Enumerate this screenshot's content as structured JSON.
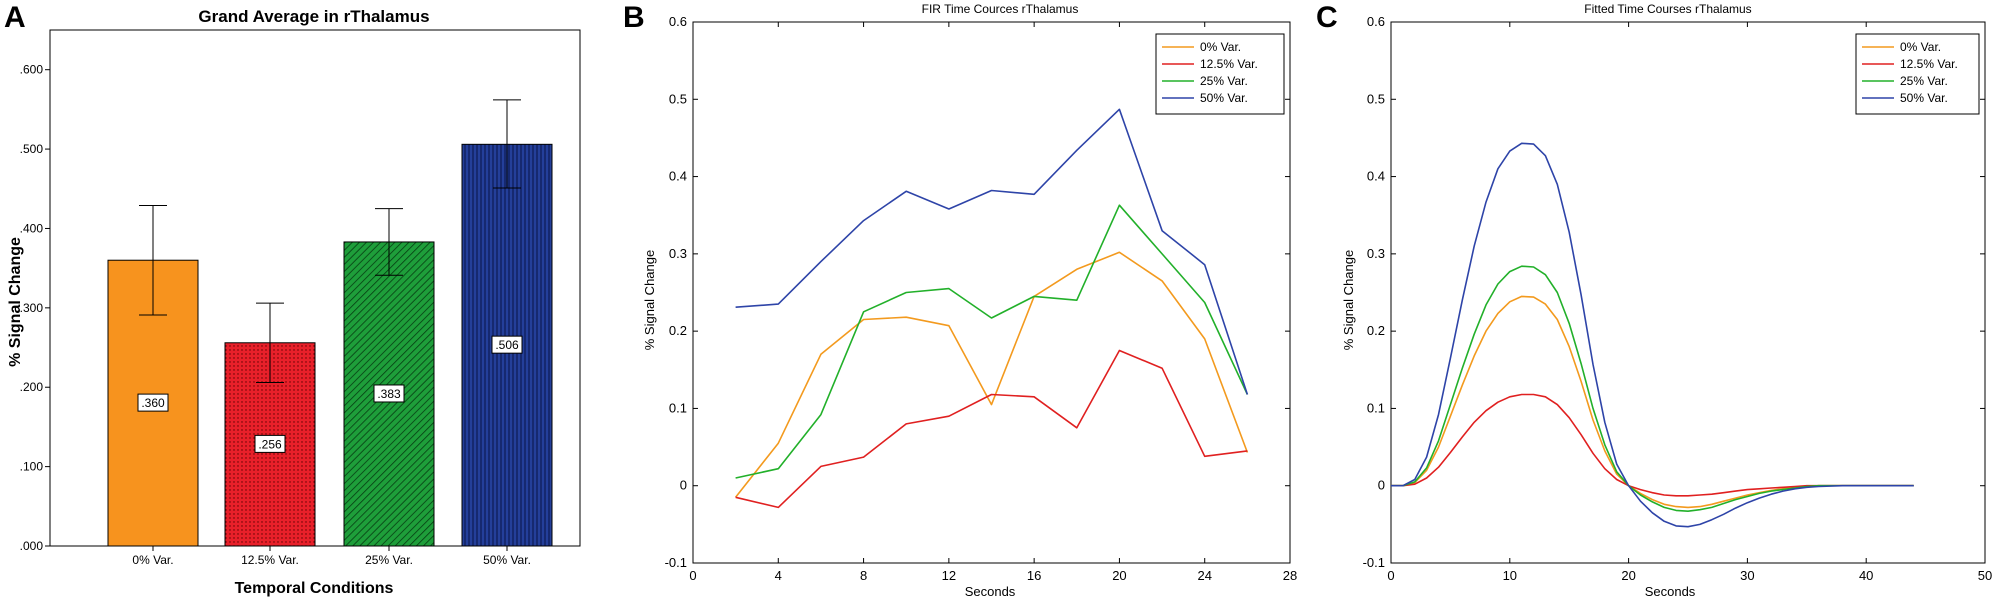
{
  "panel_letters": [
    "A",
    "B",
    "C"
  ],
  "colors": {
    "orange": "#F7931E",
    "red": "#E8202A",
    "green": "#1E9E3A",
    "blue": "#243F9A",
    "line_orange": "#F39A1E",
    "line_red": "#E02020",
    "line_green": "#22B02A",
    "line_blue": "#2E44A8"
  },
  "chart_data": [
    {
      "type": "bar",
      "title": "Grand Average in rThalamus",
      "xlabel": "Temporal Conditions",
      "ylabel": "% Signal Change",
      "categories": [
        "0% Var.",
        "12.5% Var.",
        "25% Var.",
        "50% Var."
      ],
      "values": [
        0.36,
        0.256,
        0.383,
        0.506
      ],
      "value_labels": [
        ".360",
        ".256",
        ".383",
        ".506"
      ],
      "error_low": [
        0.291,
        0.206,
        0.341,
        0.451
      ],
      "error_high": [
        0.429,
        0.306,
        0.425,
        0.562
      ],
      "yticks": [
        ".000",
        ".100",
        ".200",
        ".300",
        ".400",
        ".500",
        ".600"
      ],
      "ylim": [
        0,
        0.65
      ],
      "fill_patterns": [
        "solid",
        "dots",
        "diagonal",
        "vertical"
      ]
    },
    {
      "type": "line",
      "title": "FIR Time Cources rThalamus",
      "xlabel": "Seconds",
      "ylabel": "% Signal Change",
      "xlim": [
        0,
        28
      ],
      "ylim": [
        -0.1,
        0.6
      ],
      "xticks": [
        "0",
        "4",
        "8",
        "12",
        "16",
        "20",
        "24",
        "28"
      ],
      "yticks": [
        "-0.1",
        "0",
        "0.1",
        "0.2",
        "0.3",
        "0.4",
        "0.5",
        "0.6"
      ],
      "legend": "top-right",
      "x": [
        2,
        4,
        6,
        8,
        10,
        12,
        14,
        16,
        18,
        20,
        22,
        24,
        26
      ],
      "series": [
        {
          "name": "0% Var.",
          "values": [
            -0.015,
            0.055,
            0.17,
            0.215,
            0.218,
            0.207,
            0.105,
            0.245,
            0.28,
            0.302,
            0.265,
            0.19,
            0.043
          ]
        },
        {
          "name": "12.5% Var.",
          "values": [
            -0.015,
            -0.028,
            0.025,
            0.037,
            0.08,
            0.09,
            0.118,
            0.115,
            0.075,
            0.175,
            0.152,
            0.038,
            0.045
          ]
        },
        {
          "name": "25% Var.",
          "values": [
            0.01,
            0.022,
            0.092,
            0.225,
            0.25,
            0.255,
            0.217,
            0.245,
            0.24,
            0.363,
            0.3,
            0.237,
            0.118
          ]
        },
        {
          "name": "50% Var.",
          "values": [
            0.231,
            0.235,
            0.29,
            0.343,
            0.381,
            0.358,
            0.382,
            0.377,
            0.434,
            0.487,
            0.33,
            0.286,
            0.118
          ]
        }
      ]
    },
    {
      "type": "line",
      "title": "Fitted Time Courses rThalamus",
      "xlabel": "Seconds",
      "ylabel": "% Signal Change",
      "xlim": [
        0,
        50
      ],
      "ylim": [
        -0.1,
        0.6
      ],
      "xticks": [
        "0",
        "10",
        "20",
        "30",
        "40",
        "50"
      ],
      "yticks": [
        "-0.1",
        "0",
        "0.1",
        "0.2",
        "0.3",
        "0.4",
        "0.5",
        "0.6"
      ],
      "legend": "top-right",
      "x": [
        0,
        1,
        2,
        3,
        4,
        5,
        6,
        7,
        8,
        9,
        10,
        11,
        12,
        13,
        14,
        15,
        16,
        17,
        18,
        19,
        20,
        21,
        22,
        23,
        24,
        25,
        26,
        27,
        28,
        29,
        30,
        31,
        32,
        33,
        34,
        35,
        36,
        38,
        40,
        42,
        44
      ],
      "series": [
        {
          "name": "0% Var.",
          "values": [
            0,
            0,
            0.004,
            0.02,
            0.05,
            0.09,
            0.13,
            0.168,
            0.2,
            0.223,
            0.238,
            0.245,
            0.244,
            0.235,
            0.215,
            0.18,
            0.135,
            0.085,
            0.045,
            0.015,
            0,
            -0.01,
            -0.018,
            -0.024,
            -0.027,
            -0.028,
            -0.027,
            -0.024,
            -0.02,
            -0.016,
            -0.012,
            -0.009,
            -0.006,
            -0.004,
            -0.002,
            -0.001,
            0,
            0,
            0,
            0,
            0
          ]
        },
        {
          "name": "12.5% Var.",
          "values": [
            0,
            0,
            0.002,
            0.01,
            0.024,
            0.043,
            0.063,
            0.082,
            0.097,
            0.108,
            0.115,
            0.118,
            0.118,
            0.115,
            0.105,
            0.088,
            0.066,
            0.042,
            0.022,
            0.008,
            0,
            -0.005,
            -0.009,
            -0.012,
            -0.013,
            -0.013,
            -0.012,
            -0.011,
            -0.009,
            -0.007,
            -0.005,
            -0.004,
            -0.003,
            -0.002,
            -0.001,
            0,
            0,
            0,
            0,
            0,
            0
          ]
        },
        {
          "name": "25% Var.",
          "values": [
            0,
            0,
            0.005,
            0.023,
            0.058,
            0.105,
            0.152,
            0.196,
            0.234,
            0.261,
            0.277,
            0.284,
            0.283,
            0.273,
            0.25,
            0.21,
            0.158,
            0.1,
            0.053,
            0.018,
            0,
            -0.012,
            -0.021,
            -0.028,
            -0.032,
            -0.033,
            -0.031,
            -0.028,
            -0.023,
            -0.018,
            -0.014,
            -0.01,
            -0.007,
            -0.005,
            -0.003,
            -0.001,
            0,
            0,
            0,
            0,
            0
          ]
        },
        {
          "name": "50% Var.",
          "values": [
            0,
            0,
            0.008,
            0.037,
            0.092,
            0.165,
            0.24,
            0.31,
            0.367,
            0.41,
            0.433,
            0.443,
            0.442,
            0.427,
            0.39,
            0.328,
            0.247,
            0.157,
            0.082,
            0.028,
            0,
            -0.02,
            -0.035,
            -0.046,
            -0.052,
            -0.053,
            -0.05,
            -0.044,
            -0.037,
            -0.029,
            -0.022,
            -0.016,
            -0.011,
            -0.007,
            -0.004,
            -0.002,
            -0.001,
            0,
            0,
            0,
            0
          ]
        }
      ]
    }
  ]
}
